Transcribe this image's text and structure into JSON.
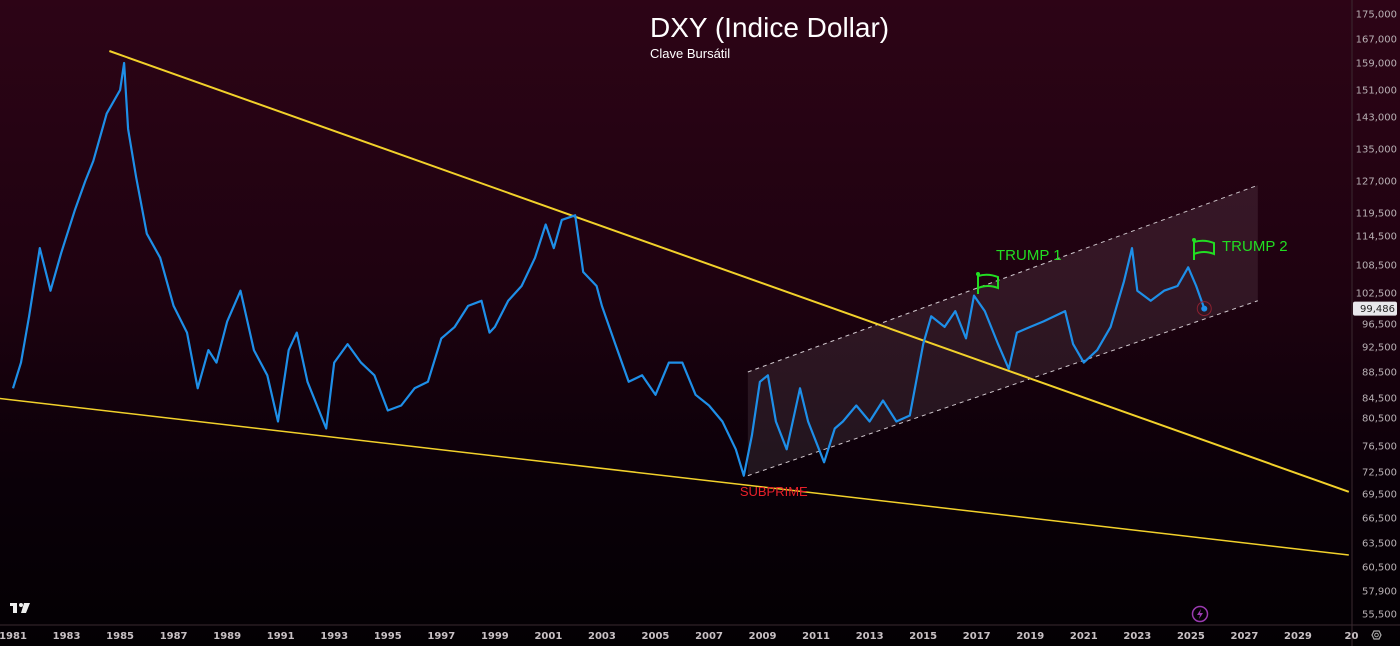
{
  "chart_data": {
    "type": "line",
    "title": "DXY (Indice Dollar)",
    "subtitle": "Clave Bursátil",
    "xlabel": "",
    "ylabel": "",
    "x_ticks": [
      "1981",
      "1983",
      "1985",
      "1987",
      "1989",
      "1991",
      "1993",
      "1995",
      "1997",
      "1999",
      "2001",
      "2003",
      "2005",
      "2007",
      "2009",
      "2011",
      "2013",
      "2015",
      "2017",
      "2019",
      "2021",
      "2023",
      "2025",
      "2027",
      "2029",
      "20"
    ],
    "y_ticks": [
      "175,000",
      "167,000",
      "159,000",
      "151,000",
      "143,000",
      "135,000",
      "127,000",
      "119,500",
      "114,500",
      "108,500",
      "102,500",
      "96,500",
      "92,500",
      "88,500",
      "84,500",
      "80,500",
      "76,500",
      "72,500",
      "69,500",
      "66,500",
      "63,500",
      "60,500",
      "57,900",
      "55,500"
    ],
    "last_price_label": "99,486",
    "series": [
      {
        "name": "DXY",
        "color": "#1e8fe8",
        "x": [
          1981.0,
          1981.3,
          1981.6,
          1982.0,
          1982.4,
          1982.8,
          1983.3,
          1983.7,
          1984.0,
          1984.5,
          1985.0,
          1985.15,
          1985.3,
          1985.6,
          1986.0,
          1986.5,
          1987.0,
          1987.5,
          1987.9,
          1988.3,
          1988.6,
          1989.0,
          1989.5,
          1990.0,
          1990.5,
          1990.9,
          1991.3,
          1991.6,
          1992.0,
          1992.7,
          1993.0,
          1993.5,
          1994.0,
          1994.5,
          1995.0,
          1995.5,
          1996.0,
          1996.5,
          1997.0,
          1997.5,
          1998.0,
          1998.5,
          1998.8,
          1999.0,
          1999.5,
          2000.0,
          2000.5,
          2000.9,
          2001.2,
          2001.5,
          2002.0,
          2002.3,
          2002.8,
          2003.0,
          2003.5,
          2004.0,
          2004.5,
          2005.0,
          2005.5,
          2006.0,
          2006.5,
          2007.0,
          2007.5,
          2008.0,
          2008.3,
          2008.6,
          2008.9,
          2009.2,
          2009.5,
          2009.9,
          2010.4,
          2010.7,
          2011.3,
          2011.7,
          2012.0,
          2012.5,
          2013.0,
          2013.5,
          2014.0,
          2014.5,
          2015.0,
          2015.3,
          2015.8,
          2016.2,
          2016.6,
          2016.9,
          2017.3,
          2017.8,
          2018.2,
          2018.5,
          2019.0,
          2019.5,
          2020.3,
          2020.6,
          2021.0,
          2021.5,
          2022.0,
          2022.5,
          2022.8,
          2023.0,
          2023.5,
          2024.0,
          2024.5,
          2024.9,
          2025.2,
          2025.5
        ],
        "values": [
          86,
          90,
          98,
          112,
          103,
          111,
          120,
          127,
          132,
          144,
          151,
          159,
          140,
          128,
          115,
          110,
          100,
          95,
          86,
          92,
          90,
          97,
          103,
          92,
          88,
          80,
          92,
          95,
          87,
          79,
          90,
          93,
          90,
          88,
          82,
          83,
          86,
          87,
          94,
          96,
          100,
          101,
          95,
          96,
          101,
          104,
          110,
          117,
          112,
          118,
          119,
          107,
          104,
          100,
          93,
          87,
          88,
          85,
          90,
          90,
          85,
          83,
          80,
          76,
          72,
          78,
          87,
          88,
          80,
          76,
          86,
          80,
          74,
          79,
          80,
          83,
          80,
          84,
          80,
          81,
          93,
          98,
          96,
          99,
          94,
          102,
          99,
          93,
          89,
          95,
          96,
          97,
          99,
          93,
          90,
          92,
          96,
          105,
          112,
          103,
          101,
          103,
          104,
          108,
          104,
          99.486
        ]
      }
    ],
    "trendlines": [
      {
        "name": "upper-resistance",
        "color": "#f2d12b",
        "from": [
          1984.6,
          163
        ],
        "to": [
          2030.9,
          69.8
        ]
      },
      {
        "name": "lower-support",
        "color": "#f2d12b",
        "from": [
          1980.5,
          84.4
        ],
        "to": [
          2030.9,
          62
        ]
      }
    ],
    "channel": {
      "lower_from": [
        2008.45,
        72
      ],
      "lower_to": [
        2027.5,
        101
      ],
      "upper_from": [
        2008.45,
        88.5
      ],
      "upper_to": [
        2027.5,
        126
      ]
    },
    "annotations": [
      {
        "text": "SUBPRIME",
        "x": 2008.3,
        "color": "#e8202a"
      },
      {
        "text": "TRUMP 1",
        "x": 2017.0,
        "color": "#22dd22"
      },
      {
        "text": "TRUMP 2",
        "x": 2025.0,
        "color": "#22dd22"
      }
    ]
  }
}
